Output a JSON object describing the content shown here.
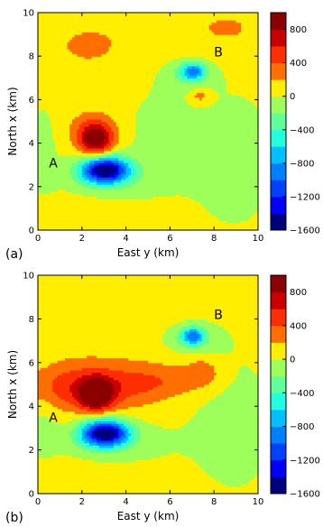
{
  "chart_data": [
    {
      "type": "heatmap",
      "panel_label": "(a)",
      "xlabel": "East y (km)",
      "ylabel": "North x (km)",
      "xlim": [
        0,
        10
      ],
      "ylim": [
        0,
        10
      ],
      "x_ticks": [
        "0",
        "2",
        "4",
        "6",
        "8",
        "10"
      ],
      "y_ticks": [
        "0",
        "2",
        "4",
        "6",
        "8",
        "10"
      ],
      "colorbar": {
        "range": [
          -1600,
          1000
        ],
        "tick_values": [
          800,
          400,
          0,
          -400,
          -800,
          -1200,
          -1600
        ],
        "tick_labels": [
          "800",
          "400",
          "0",
          "−400",
          "−800",
          "−1200",
          "−1600"
        ]
      },
      "annotations": [
        {
          "text": "A",
          "x": 0.7,
          "y": 3.1
        },
        {
          "text": "B",
          "x": 8.2,
          "y": 8.2
        }
      ],
      "anomalies": [
        {
          "x": 3.0,
          "y": 2.8,
          "peak": -1600
        },
        {
          "x": 2.6,
          "y": 4.1,
          "peak": 900
        },
        {
          "x": 7.1,
          "y": 7.3,
          "peak": -800
        },
        {
          "x": 7.3,
          "y": 6.2,
          "peak": 300
        }
      ]
    },
    {
      "type": "heatmap",
      "panel_label": "(b)",
      "xlabel": "East y (km)",
      "ylabel": "North x (km)",
      "xlim": [
        0,
        10
      ],
      "ylim": [
        0,
        10
      ],
      "x_ticks": [
        "0",
        "2",
        "4",
        "6",
        "8",
        "10"
      ],
      "y_ticks": [
        "0",
        "2",
        "4",
        "6",
        "8",
        "10"
      ],
      "colorbar": {
        "range": [
          -1600,
          1000
        ],
        "tick_values": [
          800,
          400,
          0,
          -400,
          -800,
          -1200,
          -1600
        ],
        "tick_labels": [
          "800",
          "400",
          "0",
          "−400",
          "−800",
          "−1200",
          "−1600"
        ]
      },
      "annotations": [
        {
          "text": "A",
          "x": 0.7,
          "y": 3.5
        },
        {
          "text": "B",
          "x": 8.2,
          "y": 8.2
        }
      ],
      "anomalies": [
        {
          "x": 3.0,
          "y": 2.8,
          "peak": -1600
        },
        {
          "x": 2.6,
          "y": 4.6,
          "peak": 900
        },
        {
          "x": 7.1,
          "y": 7.2,
          "peak": -800
        },
        {
          "x": 7.5,
          "y": 5.6,
          "peak": 300
        }
      ]
    }
  ],
  "palette": [
    "#00007f",
    "#0000ff",
    "#0040ff",
    "#0080ff",
    "#00c0ff",
    "#22ffde",
    "#60ff98",
    "#9eff5a",
    "#d2ff25",
    "#ffee00",
    "#ffae00",
    "#ff6e00",
    "#ff2e00",
    "#c80000",
    "#8b0000"
  ]
}
